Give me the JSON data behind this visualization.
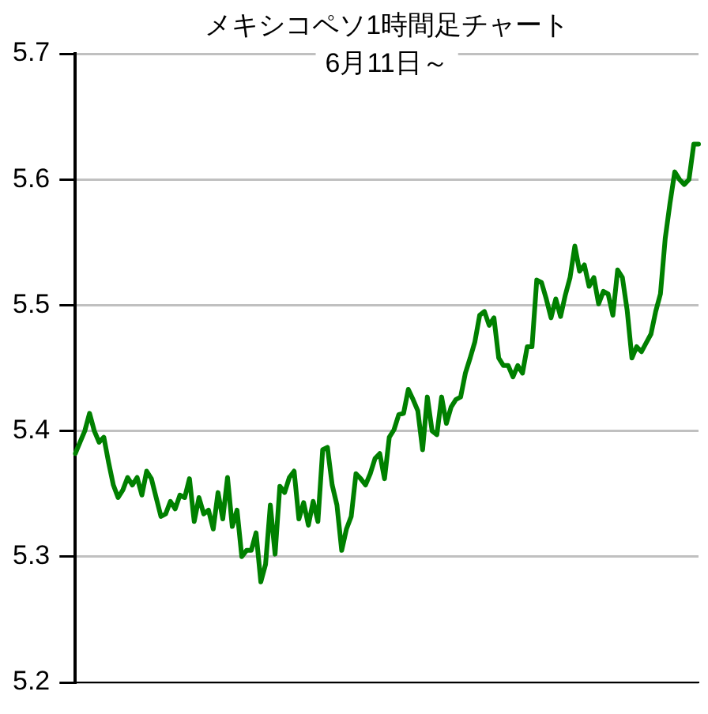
{
  "chart_data": {
    "type": "line",
    "title": "メキシコペソ1時間足チャート",
    "subtitle": "6月11日～",
    "categories": [
      null,
      null,
      null,
      null,
      null,
      null,
      null,
      null,
      null,
      null,
      null,
      null,
      null,
      null,
      null,
      null,
      null,
      null,
      null,
      null,
      null,
      null,
      null,
      null,
      null,
      null,
      null,
      null,
      null,
      null,
      null,
      null,
      null,
      null,
      null,
      null,
      null,
      null,
      null,
      null,
      null,
      null,
      null,
      null,
      null,
      null,
      null,
      null,
      null,
      null,
      null,
      null,
      null,
      null,
      null,
      null,
      null,
      null,
      null,
      null,
      null,
      null,
      null,
      null,
      null,
      null,
      null,
      null,
      null,
      null,
      null,
      null,
      null,
      null,
      null,
      null,
      null,
      null,
      null,
      null,
      null,
      null,
      null,
      null,
      null,
      null,
      null,
      null,
      null,
      null,
      null,
      null,
      null,
      null,
      null,
      null,
      null,
      null,
      null,
      null,
      null,
      null,
      null,
      null,
      null,
      null,
      null,
      null,
      null,
      null,
      null,
      null,
      null,
      null,
      null,
      null,
      null,
      null,
      null,
      null,
      null,
      null,
      null,
      null,
      null,
      null,
      null,
      null,
      null,
      null,
      null,
      null
    ],
    "values": [
      5.382,
      5.391,
      5.4,
      5.414,
      5.4,
      5.391,
      5.395,
      5.375,
      5.357,
      5.347,
      5.353,
      5.363,
      5.357,
      5.363,
      5.349,
      5.368,
      5.362,
      5.347,
      5.332,
      5.334,
      5.344,
      5.338,
      5.349,
      5.347,
      5.362,
      5.328,
      5.347,
      5.334,
      5.337,
      5.322,
      5.351,
      5.33,
      5.363,
      5.324,
      5.337,
      5.3,
      5.305,
      5.305,
      5.319,
      5.28,
      5.294,
      5.341,
      5.302,
      5.356,
      5.351,
      5.363,
      5.368,
      5.33,
      5.343,
      5.325,
      5.344,
      5.328,
      5.385,
      5.387,
      5.357,
      5.341,
      5.305,
      5.322,
      5.332,
      5.366,
      5.362,
      5.357,
      5.366,
      5.378,
      5.382,
      5.362,
      5.395,
      5.401,
      5.413,
      5.414,
      5.433,
      5.425,
      5.416,
      5.385,
      5.427,
      5.4,
      5.397,
      5.427,
      5.406,
      5.419,
      5.425,
      5.427,
      5.446,
      5.458,
      5.471,
      5.492,
      5.495,
      5.484,
      5.49,
      5.458,
      5.452,
      5.452,
      5.443,
      5.452,
      5.446,
      5.467,
      5.467,
      5.52,
      5.518,
      5.505,
      5.49,
      5.505,
      5.491,
      5.508,
      5.522,
      5.547,
      5.527,
      5.532,
      5.515,
      5.522,
      5.501,
      5.511,
      5.509,
      5.492,
      5.528,
      5.522,
      5.496,
      5.458,
      5.467,
      5.463,
      5.47,
      5.477,
      5.495,
      5.509,
      5.553,
      5.581,
      5.606,
      5.6,
      5.596,
      5.6,
      5.628,
      5.628
    ],
    "color": "#008000",
    "ylim": [
      5.2,
      5.7
    ],
    "yticks": [
      5.2,
      5.3,
      5.4,
      5.5,
      5.6,
      5.7
    ],
    "grid": "y",
    "marker": "none",
    "line_style": "solid",
    "legend": false
  }
}
